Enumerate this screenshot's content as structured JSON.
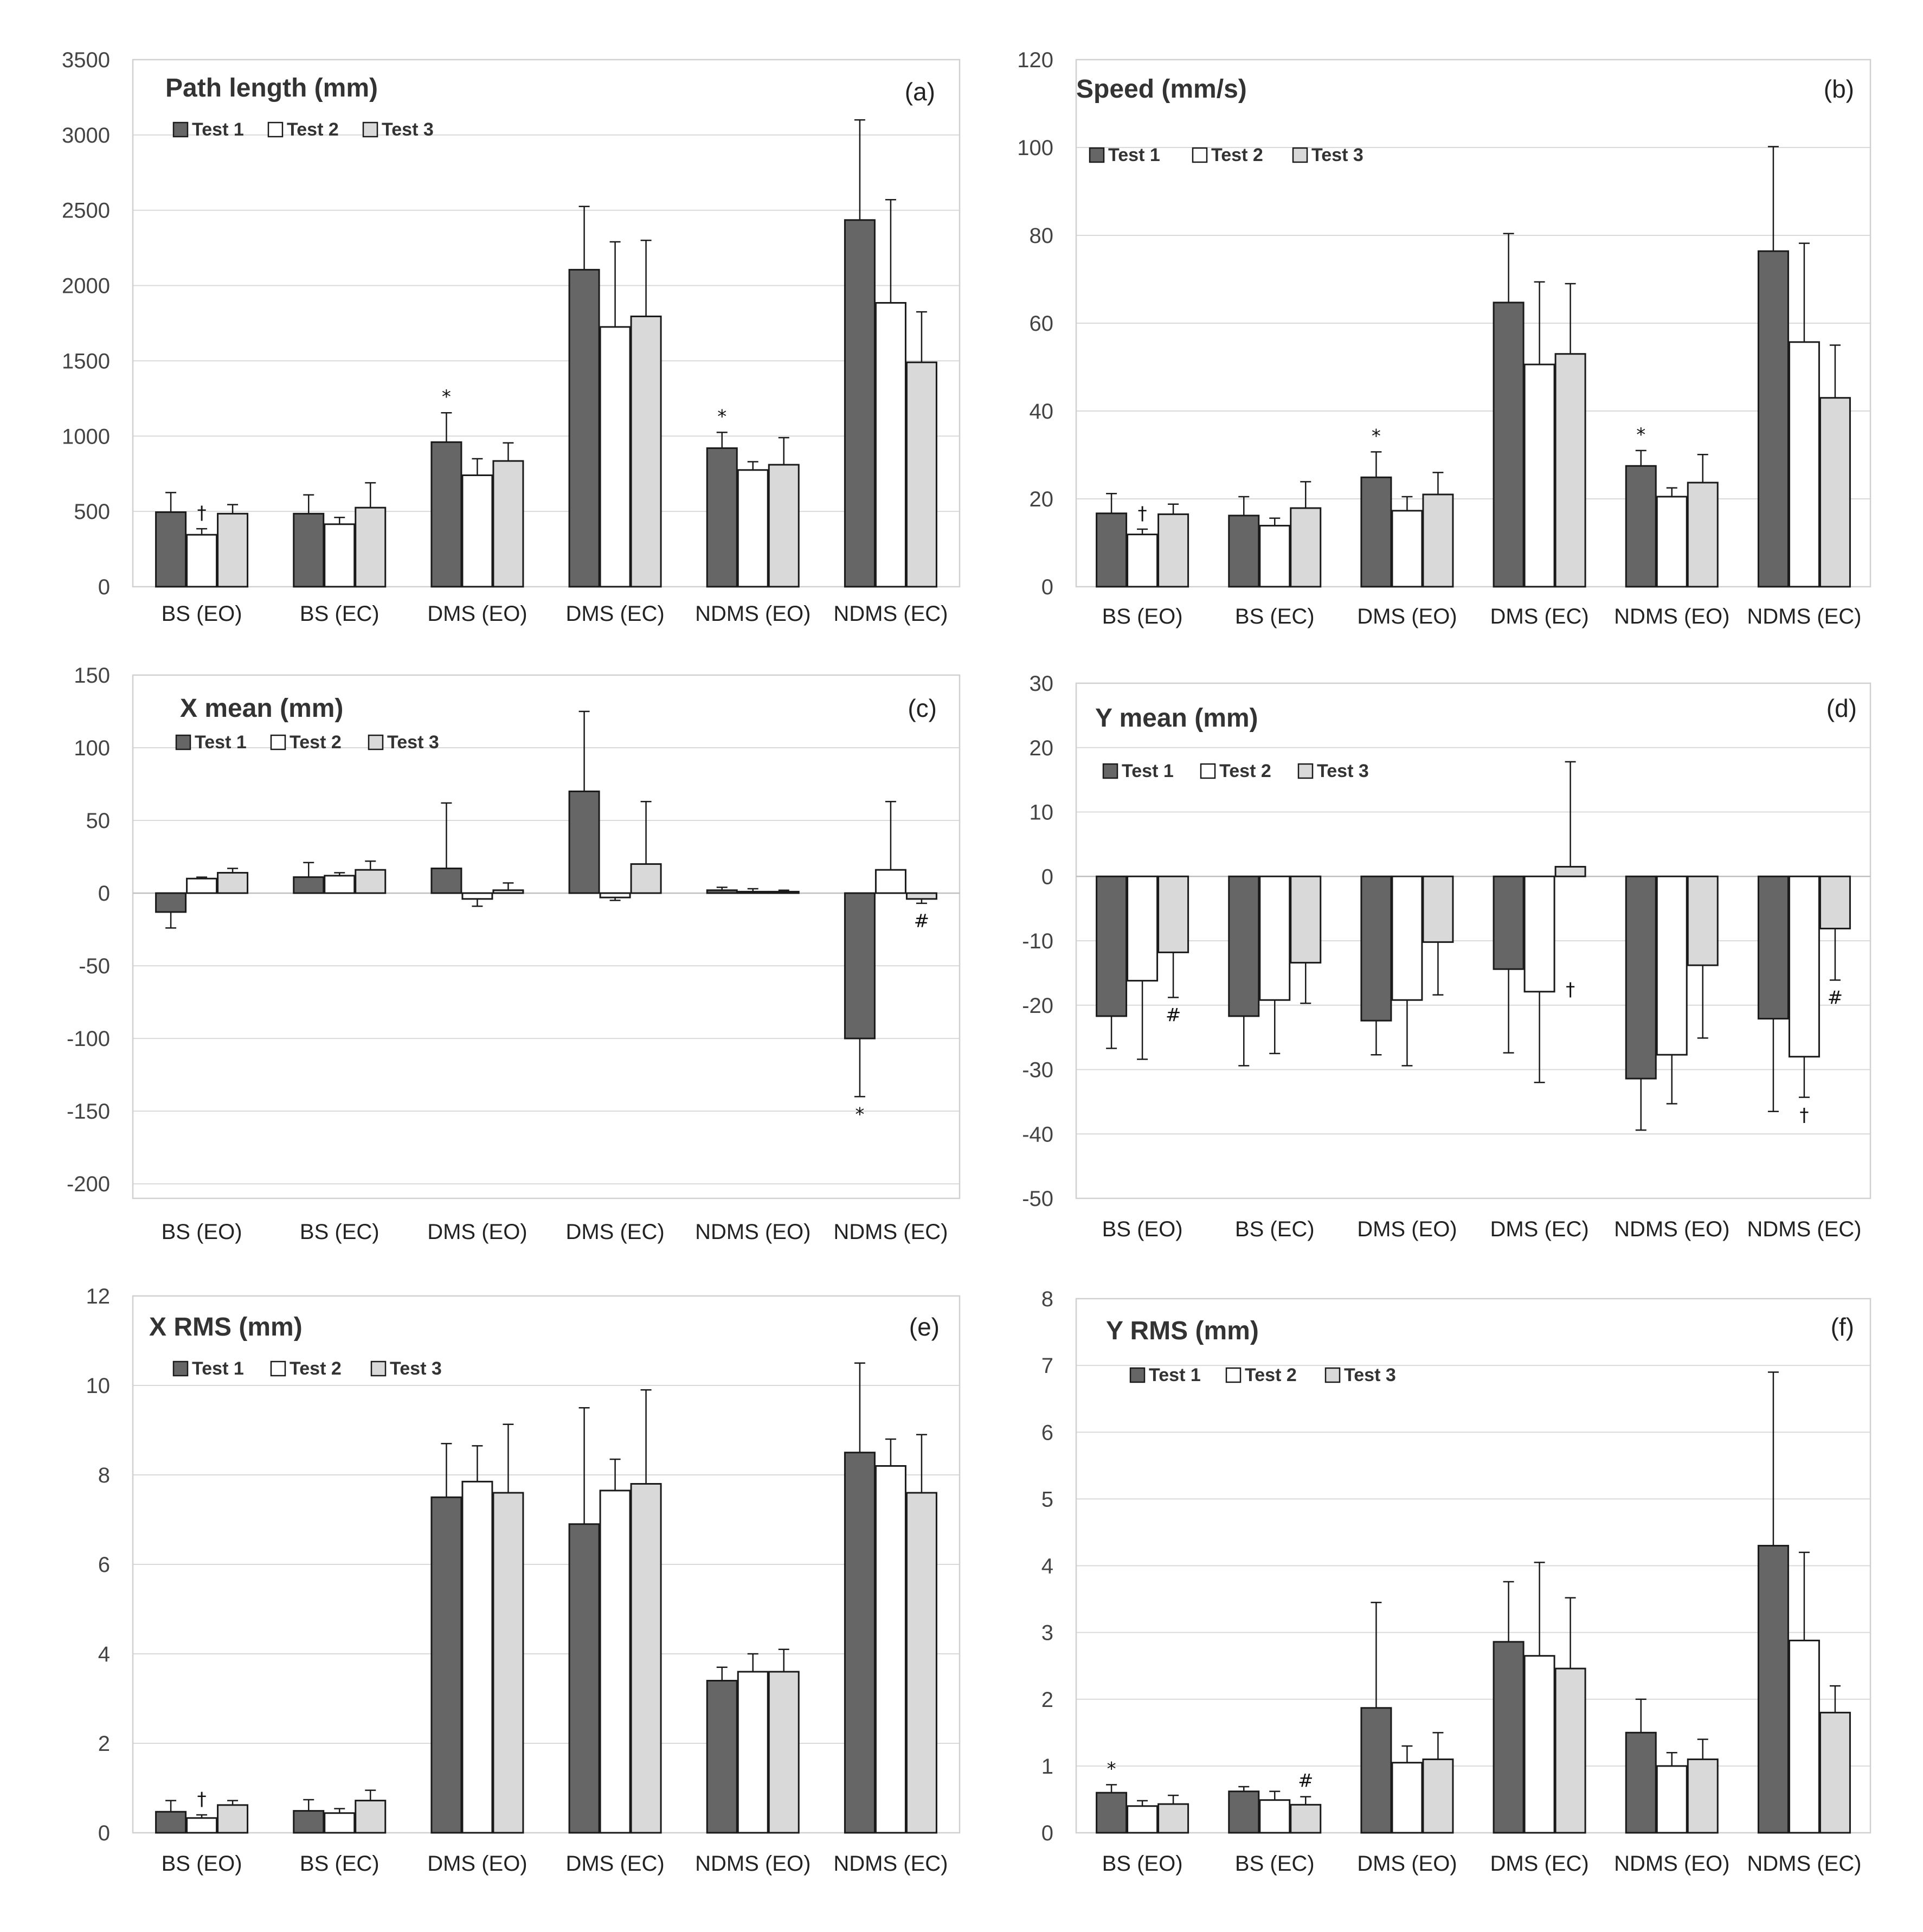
{
  "chart_data": [
    {
      "id": "a",
      "type": "bar",
      "title": "Path length  (mm)",
      "panel_label": "(a)",
      "categories": [
        "BS (EO)",
        "BS (EC)",
        "DMS (EO)",
        "DMS (EC)",
        "NDMS (EO)",
        "NDMS (EC)"
      ],
      "series": [
        {
          "name": "Test 1",
          "color": "#666666",
          "values": [
            495,
            485,
            960,
            2105,
            920,
            2435
          ],
          "errors": [
            130,
            125,
            195,
            420,
            105,
            665
          ]
        },
        {
          "name": "Test 2",
          "color": "#ffffff",
          "values": [
            345,
            415,
            740,
            1725,
            775,
            1885
          ],
          "errors": [
            40,
            45,
            110,
            565,
            55,
            685
          ]
        },
        {
          "name": "Test 3",
          "color": "#d9d9d9",
          "values": [
            485,
            525,
            835,
            1795,
            810,
            1490
          ],
          "errors": [
            60,
            165,
            120,
            505,
            180,
            335
          ]
        }
      ],
      "ylim": [
        0,
        3500
      ],
      "yticks": [
        0,
        500,
        1000,
        1500,
        2000,
        2500,
        3000,
        3500
      ],
      "legend": "top-left",
      "grid": true,
      "annotations": [
        {
          "text": "†",
          "category": 0,
          "series": 1,
          "position": "above"
        },
        {
          "text": "*",
          "category": 2,
          "series": 0,
          "position": "above"
        },
        {
          "text": "*",
          "category": 4,
          "series": 0,
          "position": "above"
        }
      ]
    },
    {
      "id": "b",
      "type": "bar",
      "title": "Speed (mm/s)",
      "panel_label": "(b)",
      "categories": [
        "BS (EO)",
        "BS (EC)",
        "DMS (EO)",
        "DMS (EC)",
        "NDMS (EO)",
        "NDMS (EC)"
      ],
      "series": [
        {
          "name": "Test 1",
          "color": "#666666",
          "values": [
            16.7,
            16.2,
            24.9,
            64.7,
            27.5,
            76.4
          ],
          "errors": [
            4.5,
            4.3,
            5.8,
            15.7,
            3.5,
            23.8
          ]
        },
        {
          "name": "Test 2",
          "color": "#ffffff",
          "values": [
            11.9,
            13.9,
            17.3,
            50.6,
            20.5,
            55.7
          ],
          "errors": [
            1.2,
            1.7,
            3.2,
            18.8,
            2.0,
            22.5
          ]
        },
        {
          "name": "Test 3",
          "color": "#d9d9d9",
          "values": [
            16.5,
            17.9,
            21.0,
            53.0,
            23.7,
            43.0
          ],
          "errors": [
            2.3,
            6.0,
            5.0,
            16.0,
            6.4,
            12.0
          ]
        }
      ],
      "ylim": [
        0,
        120
      ],
      "yticks": [
        0,
        20,
        40,
        60,
        80,
        100,
        120
      ],
      "legend": "top-left",
      "grid": true,
      "annotations": [
        {
          "text": "†",
          "category": 0,
          "series": 1,
          "position": "above"
        },
        {
          "text": "*",
          "category": 2,
          "series": 0,
          "position": "above"
        },
        {
          "text": "*",
          "category": 4,
          "series": 0,
          "position": "above"
        }
      ]
    },
    {
      "id": "c",
      "type": "bar",
      "title": "X mean (mm)",
      "panel_label": "(c)",
      "categories": [
        "BS (EO)",
        "BS (EC)",
        "DMS (EO)",
        "DMS (EC)",
        "NDMS (EO)",
        "NDMS (EC)"
      ],
      "series": [
        {
          "name": "Test 1",
          "color": "#666666",
          "values": [
            -13,
            11,
            17,
            70,
            2,
            -100
          ],
          "errors": [
            11,
            10,
            45,
            55,
            2,
            40
          ]
        },
        {
          "name": "Test 2",
          "color": "#ffffff",
          "values": [
            10,
            12,
            -4,
            -3,
            1,
            16
          ],
          "errors": [
            1,
            2,
            5,
            2,
            2,
            47
          ]
        },
        {
          "name": "Test 3",
          "color": "#d9d9d9",
          "values": [
            14,
            16,
            2,
            20,
            1,
            -4
          ],
          "errors": [
            3,
            6,
            5,
            43,
            1,
            3
          ]
        }
      ],
      "legend_labels": [
        "Test 1",
        "Test 2",
        "Test 3"
      ],
      "ylim": [
        -210,
        150
      ],
      "yticks": [
        -200,
        -150,
        -100,
        -50,
        0,
        50,
        100,
        150
      ],
      "legend": "top-left",
      "grid": true,
      "annotations": [
        {
          "text": "*",
          "category": 5,
          "series": 0,
          "position": "below"
        },
        {
          "text": "#",
          "category": 5,
          "series": 2,
          "position": "below"
        }
      ]
    },
    {
      "id": "d",
      "type": "bar",
      "title": "Y mean (mm)",
      "panel_label": "(d)",
      "categories": [
        "BS (EO)",
        "BS (EC)",
        "DMS (EO)",
        "DMS (EC)",
        "NDMS (EO)",
        "NDMS (EC)"
      ],
      "series": [
        {
          "name": "Test 1",
          "color": "#666666",
          "values": [
            -21.7,
            -21.7,
            -22.4,
            -14.4,
            -31.4,
            -22.1
          ],
          "errors": [
            5,
            7.7,
            5.3,
            13,
            8,
            14.4
          ]
        },
        {
          "name": "Test 2",
          "color": "#ffffff",
          "values": [
            -16.2,
            -19.2,
            -19.2,
            -17.9,
            -27.7,
            -28.0
          ],
          "errors": [
            12.2,
            8.3,
            10.2,
            14.1,
            7.6,
            6.3
          ]
        },
        {
          "name": "Test 3",
          "color": "#d9d9d9",
          "values": [
            -11.8,
            -13.4,
            -10.2,
            1.5,
            -13.8,
            -8.1
          ],
          "errors": [
            7,
            6.3,
            8.2,
            16.3,
            11.3,
            8
          ]
        }
      ],
      "ylim": [
        -50,
        30
      ],
      "yticks": [
        -50,
        -40,
        -30,
        -20,
        -10,
        0,
        10,
        20,
        30
      ],
      "legend": "top-left",
      "grid": true,
      "annotations": [
        {
          "text": "#",
          "category": 0,
          "series": 2,
          "position": "below"
        },
        {
          "text": "†",
          "category": 3,
          "series": 2,
          "position": "below"
        },
        {
          "text": "#",
          "category": 5,
          "series": 2,
          "position": "below"
        },
        {
          "text": "†",
          "category": 5,
          "series": 1,
          "position": "below"
        }
      ]
    },
    {
      "id": "e",
      "type": "bar",
      "title": "X RMS (mm)",
      "panel_label": "(e)",
      "categories": [
        "BS (EO)",
        "BS (EC)",
        "DMS (EO)",
        "DMS (EC)",
        "NDMS (EO)",
        "NDMS (EC)"
      ],
      "series": [
        {
          "name": "Test 1",
          "color": "#666666",
          "values": [
            0.47,
            0.49,
            7.5,
            6.9,
            3.4,
            8.5
          ],
          "errors": [
            0.25,
            0.25,
            1.2,
            2.6,
            0.3,
            2.0
          ]
        },
        {
          "name": "Test 2",
          "color": "#ffffff",
          "values": [
            0.33,
            0.44,
            7.85,
            7.65,
            3.6,
            8.2
          ],
          "errors": [
            0.07,
            0.1,
            0.8,
            0.7,
            0.4,
            0.6
          ]
        },
        {
          "name": "Test 3",
          "color": "#d9d9d9",
          "values": [
            0.62,
            0.72,
            7.6,
            7.8,
            3.6,
            7.6
          ],
          "errors": [
            0.1,
            0.23,
            1.53,
            2.1,
            0.5,
            1.3
          ]
        }
      ],
      "ylim": [
        0,
        12
      ],
      "yticks": [
        0,
        2,
        4,
        6,
        8,
        10,
        12
      ],
      "legend": "top-left",
      "grid": true,
      "annotations": [
        {
          "text": "†",
          "category": 0,
          "series": 1,
          "position": "above"
        }
      ]
    },
    {
      "id": "f",
      "type": "bar",
      "title": "Y RMS (mm)",
      "panel_label": "(f)",
      "categories": [
        "BS (EO)",
        "BS (EC)",
        "DMS (EO)",
        "DMS (EC)",
        "NDMS (EO)",
        "NDMS (EC)"
      ],
      "series": [
        {
          "name": "Test 1",
          "color": "#666666",
          "values": [
            0.6,
            0.62,
            1.87,
            2.86,
            1.5,
            4.3
          ],
          "errors": [
            0.12,
            0.07,
            1.58,
            0.9,
            0.5,
            2.6
          ]
        },
        {
          "name": "Test 2",
          "color": "#ffffff",
          "values": [
            0.4,
            0.49,
            1.05,
            2.65,
            1.0,
            2.88
          ],
          "errors": [
            0.08,
            0.13,
            0.25,
            1.4,
            0.2,
            1.32
          ]
        },
        {
          "name": "Test 3",
          "color": "#d9d9d9",
          "values": [
            0.43,
            0.42,
            1.1,
            2.46,
            1.1,
            1.8
          ],
          "errors": [
            0.13,
            0.12,
            0.4,
            1.06,
            0.3,
            0.4
          ]
        }
      ],
      "ylim": [
        0,
        8
      ],
      "yticks": [
        0,
        1,
        2,
        3,
        4,
        5,
        6,
        7,
        8
      ],
      "legend": "top-left",
      "grid": true,
      "annotations": [
        {
          "text": "*",
          "category": 0,
          "series": 0,
          "position": "above"
        },
        {
          "text": "#",
          "category": 1,
          "series": 2,
          "position": "above"
        }
      ]
    }
  ]
}
